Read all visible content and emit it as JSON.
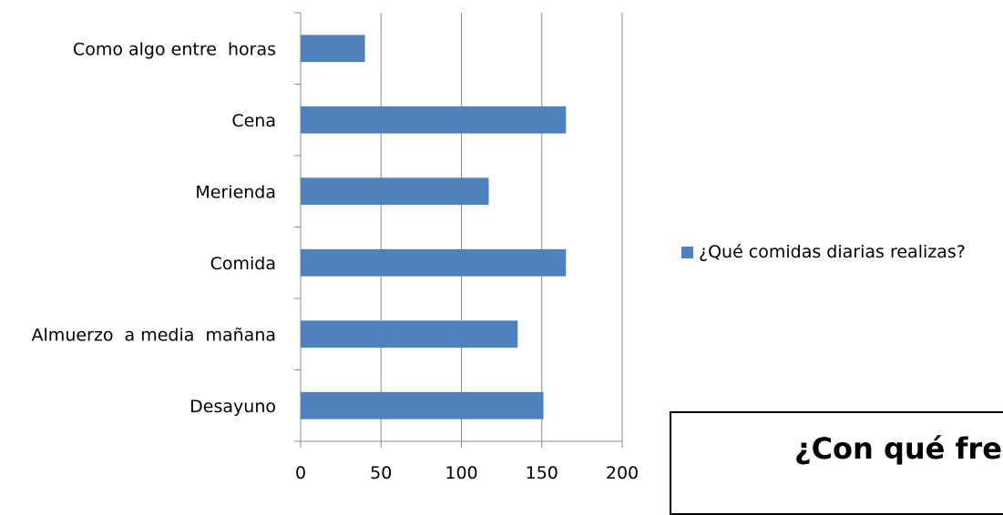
{
  "chart_data": {
    "type": "bar",
    "orientation": "horizontal",
    "categories": [
      "Desayuno",
      "Almuerzo  a media  mañana",
      "Comida",
      "Merienda",
      "Cena",
      "Como algo entre  horas"
    ],
    "series": [
      {
        "name": "¿Qué comidas diarias realizas?",
        "values": [
          151,
          135,
          165,
          117,
          165,
          40
        ]
      }
    ],
    "xlim": [
      0,
      200
    ],
    "xticks": [
      0,
      50,
      100,
      150,
      200
    ],
    "grid": true,
    "legend": "right",
    "color": "#4f81bd"
  },
  "next_chart": {
    "title": "¿Con qué fre"
  }
}
